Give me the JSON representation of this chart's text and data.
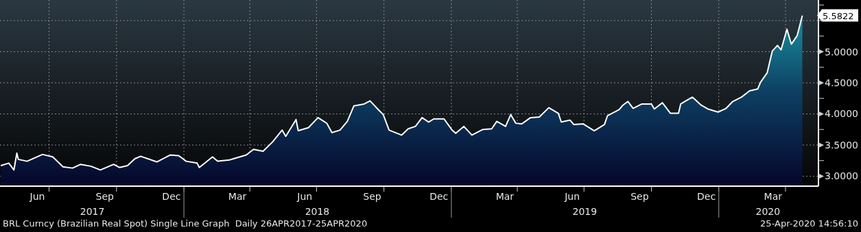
{
  "chart_data": {
    "type": "area",
    "marker": "none",
    "line_style": "solid",
    "grid": true,
    "x": [
      "2017-04-26",
      "2017-05-07",
      "2017-05-14",
      "2017-05-18",
      "2017-05-20",
      "2017-06-01",
      "2017-06-22",
      "2017-07-06",
      "2017-07-20",
      "2017-08-02",
      "2017-08-13",
      "2017-08-27",
      "2017-09-09",
      "2017-09-27",
      "2017-10-05",
      "2017-10-16",
      "2017-10-26",
      "2017-11-03",
      "2017-11-25",
      "2017-12-13",
      "2017-12-25",
      "2018-01-04",
      "2018-01-19",
      "2018-01-22",
      "2018-02-09",
      "2018-02-16",
      "2018-03-04",
      "2018-03-27",
      "2018-04-06",
      "2018-04-19",
      "2018-05-02",
      "2018-05-15",
      "2018-05-20",
      "2018-06-03",
      "2018-06-06",
      "2018-06-20",
      "2018-07-03",
      "2018-07-15",
      "2018-07-22",
      "2018-08-02",
      "2018-08-12",
      "2018-08-21",
      "2018-09-04",
      "2018-09-12",
      "2018-09-24",
      "2018-09-30",
      "2018-10-08",
      "2018-10-25",
      "2018-11-03",
      "2018-11-13",
      "2018-11-22",
      "2018-12-01",
      "2018-12-08",
      "2018-12-22",
      "2019-01-02",
      "2019-01-07",
      "2019-01-18",
      "2019-01-29",
      "2019-02-13",
      "2019-02-25",
      "2019-03-04",
      "2019-03-16",
      "2019-03-23",
      "2019-03-30",
      "2019-04-07",
      "2019-04-19",
      "2019-05-01",
      "2019-05-14",
      "2019-05-27",
      "2019-05-31",
      "2019-06-12",
      "2019-06-17",
      "2019-06-30",
      "2019-07-15",
      "2019-07-29",
      "2019-08-02",
      "2019-08-18",
      "2019-08-23",
      "2019-08-30",
      "2019-09-06",
      "2019-09-18",
      "2019-10-01",
      "2019-10-05",
      "2019-10-16",
      "2019-10-27",
      "2019-11-07",
      "2019-11-10",
      "2019-11-17",
      "2019-11-26",
      "2019-12-08",
      "2019-12-17",
      "2019-12-31",
      "2020-01-11",
      "2020-01-20",
      "2020-02-01",
      "2020-02-12",
      "2020-02-23",
      "2020-02-27",
      "2020-03-07",
      "2020-03-14",
      "2020-03-21",
      "2020-03-26",
      "2020-04-03",
      "2020-04-09",
      "2020-04-17",
      "2020-04-24"
    ],
    "series": [
      {
        "color": "#ffffff",
        "values": [
          3.17,
          3.21,
          3.1,
          3.37,
          3.27,
          3.24,
          3.35,
          3.31,
          3.15,
          3.13,
          3.19,
          3.16,
          3.1,
          3.19,
          3.14,
          3.17,
          3.28,
          3.32,
          3.23,
          3.34,
          3.33,
          3.24,
          3.21,
          3.14,
          3.31,
          3.24,
          3.26,
          3.34,
          3.43,
          3.4,
          3.55,
          3.74,
          3.64,
          3.91,
          3.73,
          3.78,
          3.94,
          3.85,
          3.7,
          3.74,
          3.88,
          4.13,
          4.16,
          4.21,
          4.06,
          3.99,
          3.74,
          3.66,
          3.76,
          3.8,
          3.94,
          3.87,
          3.92,
          3.92,
          3.74,
          3.69,
          3.8,
          3.66,
          3.75,
          3.76,
          3.88,
          3.8,
          3.99,
          3.85,
          3.84,
          3.94,
          3.95,
          4.1,
          4.01,
          3.87,
          3.9,
          3.83,
          3.84,
          3.73,
          3.83,
          3.97,
          4.07,
          4.14,
          4.2,
          4.09,
          4.16,
          4.16,
          4.08,
          4.18,
          4.01,
          4.01,
          4.16,
          4.21,
          4.27,
          4.14,
          4.08,
          4.03,
          4.09,
          4.2,
          4.27,
          4.37,
          4.4,
          4.51,
          4.66,
          5.01,
          5.1,
          5.03,
          5.36,
          5.12,
          5.26,
          5.58
        ]
      }
    ],
    "xlim": [
      "2017-04-25",
      "2020-05-16"
    ],
    "xticks": [
      {
        "value": "2017-06-15",
        "label": "Jun"
      },
      {
        "value": "2017-07-01",
        "label": null
      },
      {
        "value": "2017-09-15",
        "label": "Sep"
      },
      {
        "value": "2017-10-01",
        "label": null
      },
      {
        "value": "2017-12-15",
        "label": "Dec"
      },
      {
        "value": "2018-01-01",
        "label": null
      },
      {
        "value": "2018-03-15",
        "label": "Mar"
      },
      {
        "value": "2018-04-01",
        "label": null
      },
      {
        "value": "2018-06-15",
        "label": "Jun"
      },
      {
        "value": "2018-07-01",
        "label": null
      },
      {
        "value": "2018-09-15",
        "label": "Sep"
      },
      {
        "value": "2018-10-01",
        "label": null
      },
      {
        "value": "2018-12-15",
        "label": "Dec"
      },
      {
        "value": "2019-01-01",
        "label": null
      },
      {
        "value": "2019-03-15",
        "label": "Mar"
      },
      {
        "value": "2019-04-01",
        "label": null
      },
      {
        "value": "2019-06-15",
        "label": "Jun"
      },
      {
        "value": "2019-07-01",
        "label": null
      },
      {
        "value": "2019-09-15",
        "label": "Sep"
      },
      {
        "value": "2019-10-01",
        "label": null
      },
      {
        "value": "2019-12-15",
        "label": "Dec"
      },
      {
        "value": "2020-01-01",
        "label": null
      },
      {
        "value": "2020-03-15",
        "label": "Mar"
      },
      {
        "value": "2020-04-01",
        "label": null
      }
    ],
    "x2lim": [
      "2017-04-25",
      "2020-05-16"
    ],
    "x2ticks": [
      {
        "value": "2017-08-29",
        "label": "2017"
      },
      {
        "value": "2018-01-01",
        "label": null
      },
      {
        "value": "2018-07-02",
        "label": "2018"
      },
      {
        "value": "2019-01-01",
        "label": null
      },
      {
        "value": "2019-07-02",
        "label": "2019"
      },
      {
        "value": "2020-01-01",
        "label": null
      },
      {
        "value": "2020-03-08",
        "label": "2020"
      }
    ],
    "ylim": [
      2.84,
      5.83
    ],
    "yticks": [
      {
        "value": 3,
        "label": "3.0000"
      },
      {
        "value": 3.25,
        "label": null
      },
      {
        "value": 3.5,
        "label": "3.5000"
      },
      {
        "value": 3.75,
        "label": null
      },
      {
        "value": 4,
        "label": "4.0000"
      },
      {
        "value": 4.25,
        "label": null
      },
      {
        "value": 4.5,
        "label": "4.5000"
      },
      {
        "value": 4.75,
        "label": null
      },
      {
        "value": 5,
        "label": "5.0000"
      },
      {
        "value": 5.25,
        "label": null
      },
      {
        "value": 5.5,
        "label": null
      },
      {
        "value": 5.75,
        "label": null
      }
    ],
    "annotations": [
      {
        "text": "5.5822",
        "x": "2020-04-24",
        "y": 5.5822
      },
      "BRL Curncy (Brazilian Real Spot) Single Line Graph  Daily 26APR2017-25APR2020",
      "25-Apr-2020 14:56:10"
    ]
  }
}
